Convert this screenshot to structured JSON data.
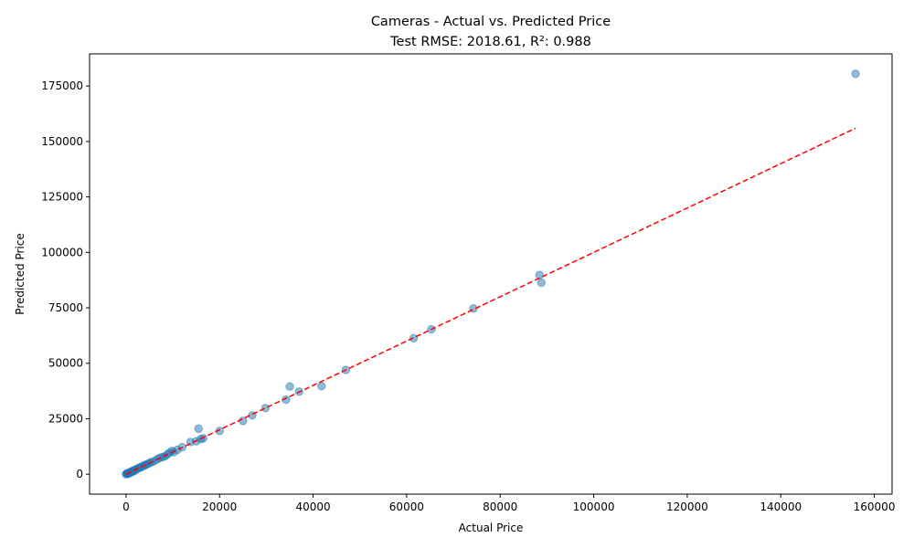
{
  "chart_data": {
    "type": "scatter",
    "title": "Cameras - Actual vs. Predicted Price",
    "subtitle": "Test RMSE: 2018.61, R²: 0.988",
    "xlabel": "Actual Price",
    "ylabel": "Predicted Price",
    "xlim": [
      -7800,
      163800
    ],
    "ylim": [
      -9000,
      189500
    ],
    "xticks": [
      0,
      20000,
      40000,
      60000,
      80000,
      100000,
      120000,
      140000,
      160000
    ],
    "yticks": [
      0,
      25000,
      50000,
      75000,
      100000,
      125000,
      150000,
      175000
    ],
    "grid": false,
    "point_color": "#1f77b4",
    "line_color": "#ff0000",
    "reference_line": {
      "from": 0,
      "to": 156000
    },
    "points": [
      {
        "x": 0,
        "y": 0
      },
      {
        "x": 100,
        "y": 300
      },
      {
        "x": 200,
        "y": 150
      },
      {
        "x": 300,
        "y": 400
      },
      {
        "x": 400,
        "y": 200
      },
      {
        "x": 500,
        "y": 600
      },
      {
        "x": 600,
        "y": 350
      },
      {
        "x": 800,
        "y": 900
      },
      {
        "x": 1000,
        "y": 700
      },
      {
        "x": 1200,
        "y": 1300
      },
      {
        "x": 1400,
        "y": 1100
      },
      {
        "x": 1600,
        "y": 1700
      },
      {
        "x": 1800,
        "y": 1500
      },
      {
        "x": 2000,
        "y": 2100
      },
      {
        "x": 2300,
        "y": 2200
      },
      {
        "x": 2600,
        "y": 2700
      },
      {
        "x": 2900,
        "y": 2800
      },
      {
        "x": 3200,
        "y": 3300
      },
      {
        "x": 3500,
        "y": 3400
      },
      {
        "x": 3800,
        "y": 3900
      },
      {
        "x": 4100,
        "y": 4000
      },
      {
        "x": 4400,
        "y": 4500
      },
      {
        "x": 4800,
        "y": 4700
      },
      {
        "x": 5200,
        "y": 5300
      },
      {
        "x": 5600,
        "y": 5500
      },
      {
        "x": 6200,
        "y": 6100
      },
      {
        "x": 6800,
        "y": 6900
      },
      {
        "x": 7300,
        "y": 7400
      },
      {
        "x": 7800,
        "y": 7700
      },
      {
        "x": 8300,
        "y": 8000
      },
      {
        "x": 8800,
        "y": 8900
      },
      {
        "x": 9300,
        "y": 9600
      },
      {
        "x": 9800,
        "y": 10500
      },
      {
        "x": 10200,
        "y": 9900
      },
      {
        "x": 11000,
        "y": 11000
      },
      {
        "x": 12000,
        "y": 12200
      },
      {
        "x": 13800,
        "y": 14500
      },
      {
        "x": 15000,
        "y": 14800
      },
      {
        "x": 15500,
        "y": 20500
      },
      {
        "x": 16000,
        "y": 15800
      },
      {
        "x": 16500,
        "y": 16200
      },
      {
        "x": 20000,
        "y": 19500
      },
      {
        "x": 25000,
        "y": 24000
      },
      {
        "x": 27000,
        "y": 26500
      },
      {
        "x": 29800,
        "y": 29800
      },
      {
        "x": 34200,
        "y": 33600
      },
      {
        "x": 35000,
        "y": 39500
      },
      {
        "x": 37000,
        "y": 37200
      },
      {
        "x": 41800,
        "y": 39700
      },
      {
        "x": 47000,
        "y": 47000
      },
      {
        "x": 61500,
        "y": 61300
      },
      {
        "x": 65300,
        "y": 65300
      },
      {
        "x": 74300,
        "y": 74700
      },
      {
        "x": 88400,
        "y": 89800
      },
      {
        "x": 88800,
        "y": 86300
      },
      {
        "x": 156000,
        "y": 180500
      }
    ]
  }
}
